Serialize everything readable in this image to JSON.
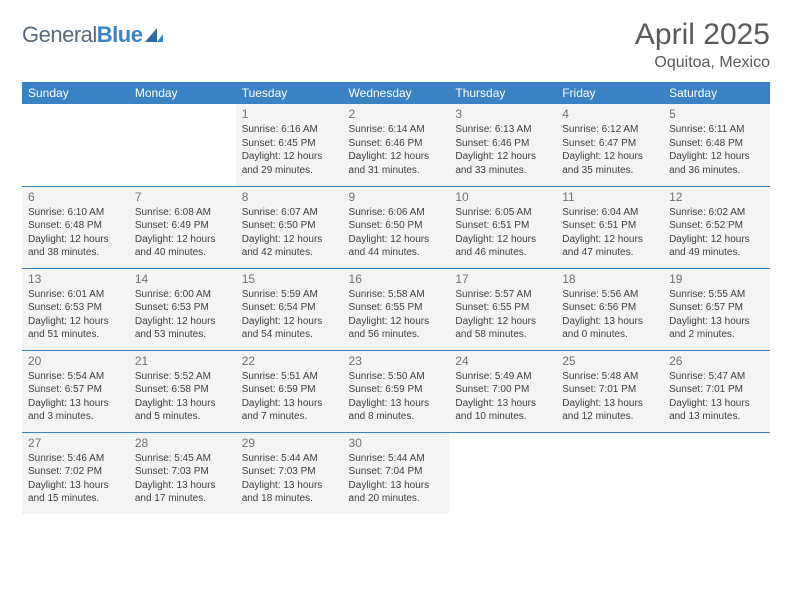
{
  "brand": {
    "part1": "General",
    "part2": "Blue"
  },
  "title": {
    "month_year": "April 2025",
    "location": "Oquitoa, Mexico"
  },
  "colors": {
    "header_bg": "#3b82c4",
    "header_text": "#ffffff",
    "cell_bg": "#f4f4f4",
    "rule": "#3b82c4",
    "page_bg": "#ffffff",
    "body_text": "#404040",
    "muted_text": "#707070",
    "logo_gray": "#5a6a7a",
    "logo_blue": "#3b82c4"
  },
  "typography": {
    "title_fontsize": 30,
    "location_fontsize": 16,
    "dayheader_fontsize": 12,
    "daynum_fontsize": 12,
    "info_fontsize": 10
  },
  "day_headers": [
    "Sunday",
    "Monday",
    "Tuesday",
    "Wednesday",
    "Thursday",
    "Friday",
    "Saturday"
  ],
  "calendar": {
    "type": "table",
    "columns": 7,
    "rows": 5,
    "lead_blanks": 2,
    "trail_blanks": 3,
    "days": [
      {
        "n": 1,
        "sunrise": "6:16 AM",
        "sunset": "6:45 PM",
        "daylight": "12 hours and 29 minutes."
      },
      {
        "n": 2,
        "sunrise": "6:14 AM",
        "sunset": "6:46 PM",
        "daylight": "12 hours and 31 minutes."
      },
      {
        "n": 3,
        "sunrise": "6:13 AM",
        "sunset": "6:46 PM",
        "daylight": "12 hours and 33 minutes."
      },
      {
        "n": 4,
        "sunrise": "6:12 AM",
        "sunset": "6:47 PM",
        "daylight": "12 hours and 35 minutes."
      },
      {
        "n": 5,
        "sunrise": "6:11 AM",
        "sunset": "6:48 PM",
        "daylight": "12 hours and 36 minutes."
      },
      {
        "n": 6,
        "sunrise": "6:10 AM",
        "sunset": "6:48 PM",
        "daylight": "12 hours and 38 minutes."
      },
      {
        "n": 7,
        "sunrise": "6:08 AM",
        "sunset": "6:49 PM",
        "daylight": "12 hours and 40 minutes."
      },
      {
        "n": 8,
        "sunrise": "6:07 AM",
        "sunset": "6:50 PM",
        "daylight": "12 hours and 42 minutes."
      },
      {
        "n": 9,
        "sunrise": "6:06 AM",
        "sunset": "6:50 PM",
        "daylight": "12 hours and 44 minutes."
      },
      {
        "n": 10,
        "sunrise": "6:05 AM",
        "sunset": "6:51 PM",
        "daylight": "12 hours and 46 minutes."
      },
      {
        "n": 11,
        "sunrise": "6:04 AM",
        "sunset": "6:51 PM",
        "daylight": "12 hours and 47 minutes."
      },
      {
        "n": 12,
        "sunrise": "6:02 AM",
        "sunset": "6:52 PM",
        "daylight": "12 hours and 49 minutes."
      },
      {
        "n": 13,
        "sunrise": "6:01 AM",
        "sunset": "6:53 PM",
        "daylight": "12 hours and 51 minutes."
      },
      {
        "n": 14,
        "sunrise": "6:00 AM",
        "sunset": "6:53 PM",
        "daylight": "12 hours and 53 minutes."
      },
      {
        "n": 15,
        "sunrise": "5:59 AM",
        "sunset": "6:54 PM",
        "daylight": "12 hours and 54 minutes."
      },
      {
        "n": 16,
        "sunrise": "5:58 AM",
        "sunset": "6:55 PM",
        "daylight": "12 hours and 56 minutes."
      },
      {
        "n": 17,
        "sunrise": "5:57 AM",
        "sunset": "6:55 PM",
        "daylight": "12 hours and 58 minutes."
      },
      {
        "n": 18,
        "sunrise": "5:56 AM",
        "sunset": "6:56 PM",
        "daylight": "13 hours and 0 minutes."
      },
      {
        "n": 19,
        "sunrise": "5:55 AM",
        "sunset": "6:57 PM",
        "daylight": "13 hours and 2 minutes."
      },
      {
        "n": 20,
        "sunrise": "5:54 AM",
        "sunset": "6:57 PM",
        "daylight": "13 hours and 3 minutes."
      },
      {
        "n": 21,
        "sunrise": "5:52 AM",
        "sunset": "6:58 PM",
        "daylight": "13 hours and 5 minutes."
      },
      {
        "n": 22,
        "sunrise": "5:51 AM",
        "sunset": "6:59 PM",
        "daylight": "13 hours and 7 minutes."
      },
      {
        "n": 23,
        "sunrise": "5:50 AM",
        "sunset": "6:59 PM",
        "daylight": "13 hours and 8 minutes."
      },
      {
        "n": 24,
        "sunrise": "5:49 AM",
        "sunset": "7:00 PM",
        "daylight": "13 hours and 10 minutes."
      },
      {
        "n": 25,
        "sunrise": "5:48 AM",
        "sunset": "7:01 PM",
        "daylight": "13 hours and 12 minutes."
      },
      {
        "n": 26,
        "sunrise": "5:47 AM",
        "sunset": "7:01 PM",
        "daylight": "13 hours and 13 minutes."
      },
      {
        "n": 27,
        "sunrise": "5:46 AM",
        "sunset": "7:02 PM",
        "daylight": "13 hours and 15 minutes."
      },
      {
        "n": 28,
        "sunrise": "5:45 AM",
        "sunset": "7:03 PM",
        "daylight": "13 hours and 17 minutes."
      },
      {
        "n": 29,
        "sunrise": "5:44 AM",
        "sunset": "7:03 PM",
        "daylight": "13 hours and 18 minutes."
      },
      {
        "n": 30,
        "sunrise": "5:44 AM",
        "sunset": "7:04 PM",
        "daylight": "13 hours and 20 minutes."
      }
    ]
  },
  "labels": {
    "sunrise": "Sunrise:",
    "sunset": "Sunset:",
    "daylight": "Daylight:"
  }
}
